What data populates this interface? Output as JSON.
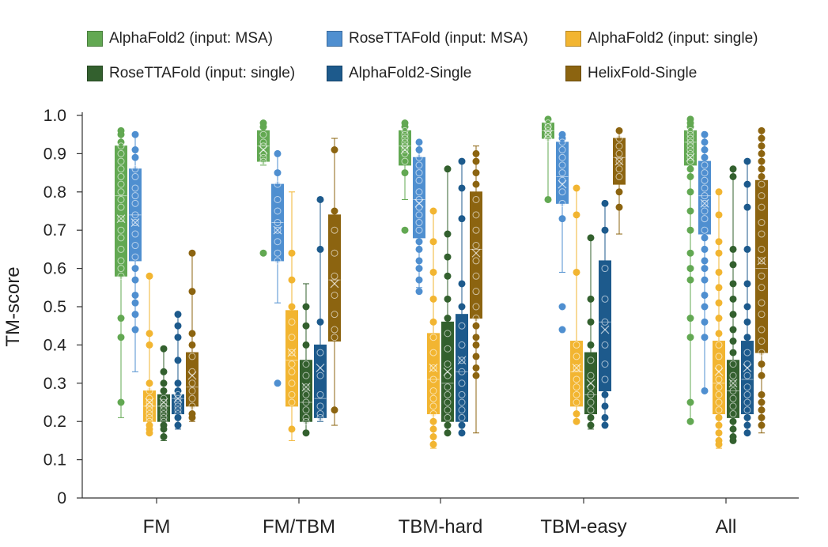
{
  "chart_data": {
    "type": "box",
    "title": "",
    "xlabel": "",
    "ylabel": "TM-score",
    "ylim": [
      0,
      1.0
    ],
    "yticks": [
      "0",
      "0.1",
      "0.2",
      "0.3",
      "0.4",
      "0.5",
      "0.6",
      "0.7",
      "0.8",
      "0.9",
      "1.0"
    ],
    "categories": [
      "FM",
      "FM/TBM",
      "TBM-hard",
      "TBM-easy",
      "All"
    ],
    "legend_position": "top",
    "series": [
      {
        "name": "AlphaFold2 (input: MSA)",
        "color": "#62a852",
        "stats": [
          {
            "min": 0.21,
            "q1": 0.58,
            "median": 0.79,
            "mean": 0.73,
            "q3": 0.92,
            "max": 0.96
          },
          {
            "min": 0.87,
            "q1": 0.88,
            "median": 0.92,
            "mean": 0.91,
            "q3": 0.96,
            "max": 0.98
          },
          {
            "min": 0.78,
            "q1": 0.87,
            "median": 0.92,
            "mean": 0.91,
            "q3": 0.96,
            "max": 0.98
          },
          {
            "min": 0.78,
            "q1": 0.94,
            "median": 0.96,
            "mean": 0.95,
            "q3": 0.98,
            "max": 0.99
          },
          {
            "min": 0.2,
            "q1": 0.87,
            "median": 0.93,
            "mean": 0.89,
            "q3": 0.96,
            "max": 0.99
          }
        ],
        "points": [
          [
            0.96,
            0.95,
            0.93,
            0.92,
            0.9,
            0.88,
            0.86,
            0.84,
            0.82,
            0.8,
            0.78,
            0.76,
            0.73,
            0.7,
            0.68,
            0.65,
            0.62,
            0.6,
            0.58,
            0.47,
            0.42,
            0.25
          ],
          [
            0.98,
            0.97,
            0.95,
            0.93,
            0.92,
            0.9,
            0.89,
            0.88,
            0.64
          ],
          [
            0.98,
            0.97,
            0.96,
            0.95,
            0.94,
            0.93,
            0.92,
            0.91,
            0.9,
            0.88,
            0.85,
            0.7
          ],
          [
            0.99,
            0.98,
            0.97,
            0.97,
            0.96,
            0.95,
            0.95,
            0.94,
            0.78
          ],
          [
            0.99,
            0.98,
            0.97,
            0.96,
            0.95,
            0.94,
            0.93,
            0.92,
            0.91,
            0.9,
            0.89,
            0.88,
            0.86,
            0.84,
            0.8,
            0.75,
            0.7,
            0.64,
            0.6,
            0.57,
            0.47,
            0.42,
            0.25,
            0.2
          ]
        ]
      },
      {
        "name": "RoseTTAFold (input: MSA)",
        "color": "#4f8fd0",
        "stats": [
          {
            "min": 0.33,
            "q1": 0.62,
            "median": 0.74,
            "mean": 0.72,
            "q3": 0.86,
            "max": 0.95
          },
          {
            "min": 0.51,
            "q1": 0.62,
            "median": 0.72,
            "mean": 0.7,
            "q3": 0.82,
            "max": 0.9
          },
          {
            "min": 0.55,
            "q1": 0.68,
            "median": 0.78,
            "mean": 0.77,
            "q3": 0.89,
            "max": 0.93
          },
          {
            "min": 0.59,
            "q1": 0.77,
            "median": 0.84,
            "mean": 0.82,
            "q3": 0.93,
            "max": 0.95
          },
          {
            "min": 0.28,
            "q1": 0.69,
            "median": 0.79,
            "mean": 0.77,
            "q3": 0.88,
            "max": 0.95
          }
        ],
        "points": [
          [
            0.95,
            0.91,
            0.89,
            0.86,
            0.84,
            0.81,
            0.79,
            0.77,
            0.74,
            0.72,
            0.69,
            0.66,
            0.63,
            0.6,
            0.57,
            0.53,
            0.51,
            0.48,
            0.44
          ],
          [
            0.9,
            0.85,
            0.82,
            0.78,
            0.75,
            0.72,
            0.7,
            0.67,
            0.64,
            0.62,
            0.3
          ],
          [
            0.93,
            0.91,
            0.89,
            0.87,
            0.85,
            0.83,
            0.8,
            0.78,
            0.76,
            0.74,
            0.72,
            0.7,
            0.67,
            0.65,
            0.62,
            0.6,
            0.57,
            0.54
          ],
          [
            0.95,
            0.94,
            0.93,
            0.91,
            0.89,
            0.87,
            0.85,
            0.83,
            0.8,
            0.77,
            0.73,
            0.5,
            0.44
          ],
          [
            0.95,
            0.93,
            0.91,
            0.89,
            0.87,
            0.85,
            0.83,
            0.81,
            0.79,
            0.77,
            0.75,
            0.73,
            0.7,
            0.68,
            0.65,
            0.62,
            0.6,
            0.57,
            0.53,
            0.5,
            0.46,
            0.42,
            0.28
          ]
        ]
      },
      {
        "name": "AlphaFold2 (input: single)",
        "color": "#f2b531",
        "stats": [
          {
            "min": 0.17,
            "q1": 0.2,
            "median": 0.24,
            "mean": 0.25,
            "q3": 0.28,
            "max": 0.58
          },
          {
            "min": 0.15,
            "q1": 0.24,
            "median": 0.36,
            "mean": 0.38,
            "q3": 0.49,
            "max": 0.8
          },
          {
            "min": 0.13,
            "q1": 0.22,
            "median": 0.31,
            "mean": 0.34,
            "q3": 0.43,
            "max": 0.75
          },
          {
            "min": 0.2,
            "q1": 0.24,
            "median": 0.33,
            "mean": 0.34,
            "q3": 0.41,
            "max": 0.81
          },
          {
            "min": 0.13,
            "q1": 0.22,
            "median": 0.3,
            "mean": 0.33,
            "q3": 0.41,
            "max": 0.8
          }
        ],
        "points": [
          [
            0.58,
            0.43,
            0.4,
            0.3,
            0.28,
            0.26,
            0.25,
            0.24,
            0.23,
            0.22,
            0.21,
            0.2,
            0.19,
            0.18,
            0.17
          ],
          [
            0.64,
            0.57,
            0.5,
            0.46,
            0.42,
            0.38,
            0.35,
            0.33,
            0.3,
            0.27,
            0.25,
            0.18
          ],
          [
            0.75,
            0.67,
            0.59,
            0.52,
            0.46,
            0.42,
            0.38,
            0.34,
            0.31,
            0.28,
            0.26,
            0.24,
            0.22,
            0.2,
            0.18,
            0.16,
            0.14
          ],
          [
            0.81,
            0.74,
            0.59,
            0.4,
            0.37,
            0.34,
            0.31,
            0.29,
            0.27,
            0.25,
            0.22,
            0.2
          ],
          [
            0.8,
            0.74,
            0.67,
            0.64,
            0.59,
            0.55,
            0.51,
            0.47,
            0.43,
            0.4,
            0.37,
            0.34,
            0.31,
            0.29,
            0.27,
            0.25,
            0.23,
            0.21,
            0.19,
            0.17,
            0.15,
            0.14
          ]
        ]
      },
      {
        "name": "RoseTTAFold (input: single)",
        "color": "#33602e",
        "stats": [
          {
            "min": 0.15,
            "q1": 0.2,
            "median": 0.24,
            "mean": 0.25,
            "q3": 0.27,
            "max": 0.39
          },
          {
            "min": 0.17,
            "q1": 0.2,
            "median": 0.25,
            "mean": 0.29,
            "q3": 0.36,
            "max": 0.56
          },
          {
            "min": 0.17,
            "q1": 0.2,
            "median": 0.3,
            "mean": 0.33,
            "q3": 0.46,
            "max": 0.86
          },
          {
            "min": 0.18,
            "q1": 0.22,
            "median": 0.27,
            "mean": 0.3,
            "q3": 0.38,
            "max": 0.68
          },
          {
            "min": 0.15,
            "q1": 0.21,
            "median": 0.28,
            "mean": 0.3,
            "q3": 0.36,
            "max": 0.86
          }
        ],
        "points": [
          [
            0.39,
            0.33,
            0.3,
            0.28,
            0.26,
            0.25,
            0.24,
            0.23,
            0.22,
            0.21,
            0.2,
            0.19,
            0.18,
            0.16
          ],
          [
            0.5,
            0.45,
            0.4,
            0.35,
            0.32,
            0.29,
            0.27,
            0.25,
            0.23,
            0.21,
            0.2,
            0.17
          ],
          [
            0.86,
            0.69,
            0.63,
            0.58,
            0.52,
            0.47,
            0.43,
            0.39,
            0.35,
            0.32,
            0.29,
            0.27,
            0.25,
            0.23,
            0.21,
            0.19,
            0.17
          ],
          [
            0.68,
            0.52,
            0.46,
            0.4,
            0.36,
            0.32,
            0.29,
            0.27,
            0.25,
            0.23,
            0.21,
            0.19
          ],
          [
            0.86,
            0.84,
            0.65,
            0.61,
            0.56,
            0.52,
            0.48,
            0.44,
            0.41,
            0.38,
            0.35,
            0.32,
            0.3,
            0.28,
            0.26,
            0.24,
            0.22,
            0.2,
            0.18,
            0.16,
            0.15
          ]
        ]
      },
      {
        "name": "AlphaFold2-Single",
        "color": "#1d5a8c",
        "stats": [
          {
            "min": 0.18,
            "q1": 0.22,
            "median": 0.26,
            "mean": 0.26,
            "q3": 0.27,
            "max": 0.48
          },
          {
            "min": 0.2,
            "q1": 0.21,
            "median": 0.26,
            "mean": 0.34,
            "q3": 0.4,
            "max": 0.78
          },
          {
            "min": 0.17,
            "q1": 0.2,
            "median": 0.33,
            "mean": 0.36,
            "q3": 0.48,
            "max": 0.88
          },
          {
            "min": 0.19,
            "q1": 0.28,
            "median": 0.46,
            "mean": 0.44,
            "q3": 0.62,
            "max": 0.77
          },
          {
            "min": 0.17,
            "q1": 0.22,
            "median": 0.31,
            "mean": 0.34,
            "q3": 0.41,
            "max": 0.88
          }
        ],
        "points": [
          [
            0.48,
            0.45,
            0.42,
            0.36,
            0.3,
            0.28,
            0.27,
            0.26,
            0.25,
            0.24,
            0.23,
            0.22,
            0.21,
            0.19
          ],
          [
            0.78,
            0.65,
            0.46,
            0.38,
            0.32,
            0.27,
            0.24,
            0.22,
            0.21
          ],
          [
            0.88,
            0.81,
            0.73,
            0.56,
            0.5,
            0.45,
            0.4,
            0.36,
            0.33,
            0.3,
            0.27,
            0.25,
            0.23,
            0.21,
            0.19,
            0.17
          ],
          [
            0.77,
            0.7,
            0.6,
            0.52,
            0.46,
            0.4,
            0.35,
            0.31,
            0.27,
            0.24,
            0.21,
            0.19
          ],
          [
            0.88,
            0.82,
            0.76,
            0.65,
            0.56,
            0.5,
            0.46,
            0.42,
            0.38,
            0.35,
            0.32,
            0.29,
            0.27,
            0.25,
            0.23,
            0.21,
            0.19,
            0.17
          ]
        ]
      },
      {
        "name": "HelixFold-Single",
        "color": "#8c6410",
        "stats": [
          {
            "min": 0.2,
            "q1": 0.24,
            "median": 0.29,
            "mean": 0.32,
            "q3": 0.38,
            "max": 0.64
          },
          {
            "min": 0.19,
            "q1": 0.41,
            "median": 0.57,
            "mean": 0.56,
            "q3": 0.74,
            "max": 0.94
          },
          {
            "min": 0.17,
            "q1": 0.47,
            "median": 0.65,
            "mean": 0.64,
            "q3": 0.8,
            "max": 0.92
          },
          {
            "min": 0.69,
            "q1": 0.82,
            "median": 0.89,
            "mean": 0.88,
            "q3": 0.94,
            "max": 0.96
          },
          {
            "min": 0.17,
            "q1": 0.38,
            "median": 0.6,
            "mean": 0.62,
            "q3": 0.83,
            "max": 0.96
          }
        ],
        "points": [
          [
            0.64,
            0.54,
            0.43,
            0.4,
            0.37,
            0.33,
            0.3,
            0.28,
            0.26,
            0.24,
            0.22,
            0.21
          ],
          [
            0.91,
            0.75,
            0.7,
            0.64,
            0.58,
            0.53,
            0.48,
            0.44,
            0.42,
            0.23
          ],
          [
            0.9,
            0.88,
            0.85,
            0.82,
            0.78,
            0.74,
            0.7,
            0.66,
            0.62,
            0.58,
            0.54,
            0.5,
            0.47,
            0.45,
            0.42,
            0.4,
            0.37,
            0.34,
            0.32
          ],
          [
            0.96,
            0.94,
            0.92,
            0.9,
            0.88,
            0.86,
            0.84,
            0.8,
            0.76
          ],
          [
            0.96,
            0.94,
            0.92,
            0.9,
            0.88,
            0.86,
            0.84,
            0.82,
            0.79,
            0.76,
            0.72,
            0.69,
            0.65,
            0.62,
            0.58,
            0.55,
            0.51,
            0.48,
            0.44,
            0.41,
            0.38,
            0.35,
            0.32,
            0.27,
            0.25,
            0.23,
            0.21,
            0.19
          ]
        ]
      }
    ]
  }
}
